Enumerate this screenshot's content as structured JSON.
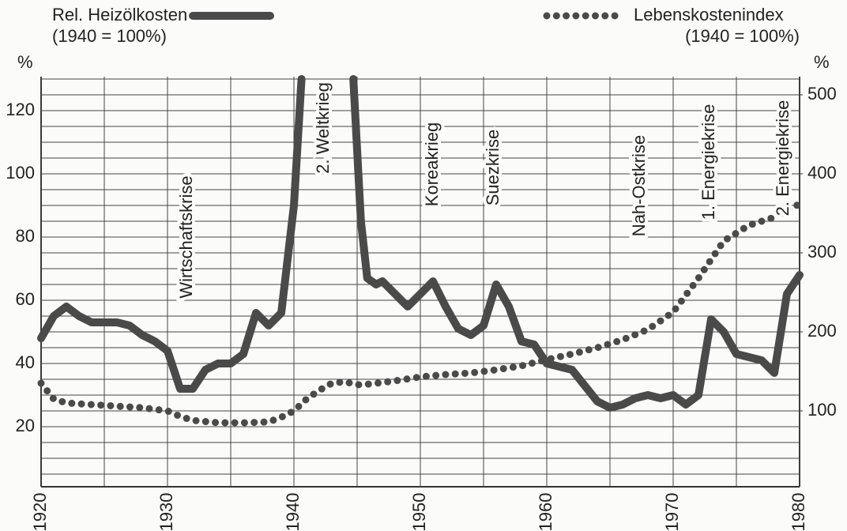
{
  "chart_data": {
    "type": "line",
    "legend_left": {
      "name": "Rel. Heizölkosten",
      "note": "(1940 = 100%)"
    },
    "legend_right": {
      "name": "Lebenskostenindex",
      "note": "(1940 = 100%)"
    },
    "ylabel": "%",
    "y2label": "%",
    "xlim": [
      1920,
      1980
    ],
    "xticks": [
      1920,
      1930,
      1940,
      1950,
      1960,
      1970,
      1980
    ],
    "x_grid_step": 5,
    "ylim": [
      0,
      130
    ],
    "yticks": [
      20,
      40,
      60,
      80,
      100,
      120
    ],
    "y_grid_step": 5,
    "y2lim": [
      0,
      520
    ],
    "y2ticks": [
      100,
      200,
      300,
      400,
      500
    ],
    "annotations": [
      "Wirtschaftskrise",
      "2. Weltkrieg",
      "Koreakrieg",
      "Suezkrise",
      "Nah-Ostkrise",
      "1. Energiekrise",
      "2. Energiekrise"
    ],
    "series": [
      {
        "name": "Rel. Heizölkosten",
        "color": "#4a4a4a",
        "style": "solid",
        "x": [
          1920,
          1921,
          1922,
          1923,
          1924,
          1926,
          1927,
          1928,
          1929,
          1930,
          1931,
          1932,
          1933,
          1934,
          1935,
          1936,
          1937,
          1938,
          1939,
          1940,
          1940.6,
          1942,
          1944.7,
          1945.3,
          1945.8,
          1946.5,
          1947,
          1948,
          1949,
          1950,
          1951,
          1952,
          1953,
          1954,
          1955,
          1956,
          1957,
          1958,
          1959,
          1960,
          1961,
          1962,
          1963,
          1964,
          1965,
          1966,
          1967,
          1968,
          1969,
          1970,
          1971,
          1972,
          1973,
          1974,
          1975,
          1976,
          1977,
          1978,
          1979,
          1980
        ],
        "values": [
          48,
          55,
          58,
          55,
          53,
          53,
          52,
          49,
          47,
          44,
          32,
          32,
          38,
          40,
          40,
          43,
          56,
          52,
          56,
          90,
          130,
          null,
          130,
          85,
          67,
          65,
          66,
          62,
          58,
          62,
          66,
          58,
          51,
          49,
          52,
          65,
          58,
          47,
          46,
          40,
          39,
          38,
          33,
          28,
          26,
          27,
          29,
          30,
          29,
          30,
          27,
          30,
          54,
          50,
          43,
          42,
          41,
          37,
          62,
          68
        ]
      },
      {
        "name": "Lebenskostenindex",
        "color": "#4a4a4a",
        "style": "dotted",
        "axis": "y2",
        "x": [
          1920,
          1921,
          1922,
          1924,
          1926,
          1928,
          1930,
          1931,
          1932,
          1934,
          1936,
          1938,
          1939,
          1940,
          1941,
          1942,
          1943,
          1944,
          1945,
          1946,
          1948,
          1950,
          1952,
          1954,
          1956,
          1958,
          1960,
          1962,
          1964,
          1966,
          1968,
          1970,
          1972,
          1974,
          1976,
          1978,
          1980
        ],
        "values": [
          135,
          115,
          110,
          108,
          106,
          104,
          100,
          93,
          88,
          85,
          85,
          86,
          92,
          100,
          115,
          126,
          135,
          137,
          133,
          134,
          138,
          143,
          146,
          148,
          152,
          157,
          165,
          172,
          180,
          190,
          203,
          225,
          268,
          315,
          335,
          345,
          362
        ]
      }
    ]
  }
}
